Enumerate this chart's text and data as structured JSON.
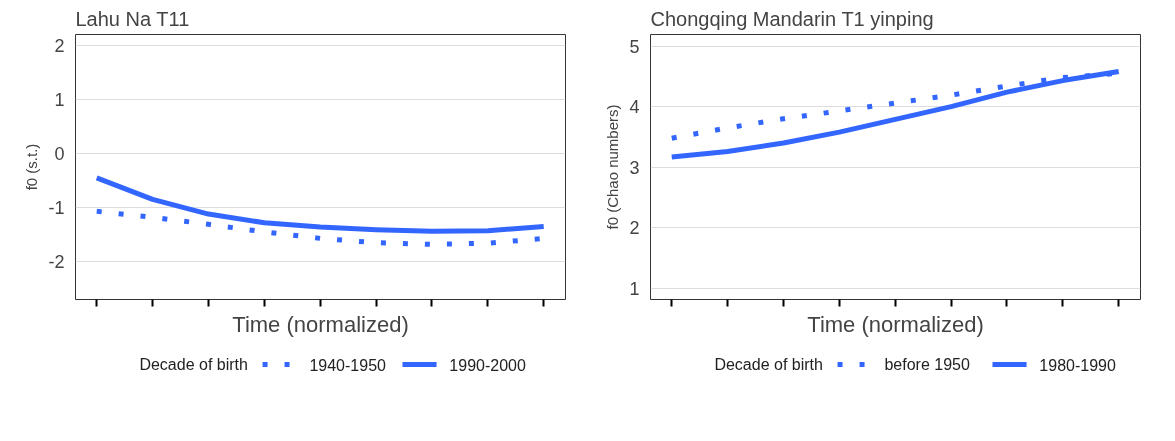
{
  "chart_data": [
    {
      "type": "line",
      "title": "Lahu Na T11",
      "xlabel": "Time (normalized)",
      "ylabel": "f0 (s.t.)",
      "legend_title": "Decade of birth",
      "legend": "bottom",
      "grid": "y",
      "tick_labels": "y",
      "categories": [
        null,
        null,
        null,
        null,
        null,
        null,
        null,
        null,
        null
      ],
      "ylim": [
        -2.7,
        2.2
      ],
      "yticks": [
        -2,
        -1,
        0,
        1,
        2
      ],
      "series": [
        {
          "name": "1940-1950",
          "color": "#3366ff",
          "line_style": "dotted",
          "values": [
            -1.07,
            -1.18,
            -1.31,
            -1.45,
            -1.57,
            -1.65,
            -1.68,
            -1.66,
            -1.57
          ]
        },
        {
          "name": "1990-2000",
          "color": "#3366ff",
          "line_style": "solid",
          "values": [
            -0.45,
            -0.85,
            -1.12,
            -1.28,
            -1.36,
            -1.41,
            -1.44,
            -1.43,
            -1.35
          ]
        }
      ]
    },
    {
      "type": "line",
      "title": "Chongqing Mandarin T1 yinping",
      "xlabel": "Time (normalized)",
      "ylabel": "f0 (Chao numbers)",
      "legend_title": "Decade of birth",
      "legend": "bottom",
      "grid": "y",
      "tick_labels": "y",
      "categories": [
        null,
        null,
        null,
        null,
        null,
        null,
        null,
        null,
        null
      ],
      "ylim": [
        0.82,
        5.19
      ],
      "yticks": [
        1,
        2,
        3,
        4,
        5
      ],
      "series": [
        {
          "name": "before 1950",
          "color": "#3366ff",
          "line_style": "dotted",
          "values": [
            3.48,
            3.65,
            3.8,
            3.93,
            4.06,
            4.19,
            4.34,
            4.48,
            4.55
          ]
        },
        {
          "name": "1980-1990",
          "color": "#3366ff",
          "line_style": "solid",
          "values": [
            3.17,
            3.26,
            3.4,
            3.58,
            3.79,
            4.0,
            4.24,
            4.43,
            4.58
          ]
        }
      ]
    }
  ]
}
